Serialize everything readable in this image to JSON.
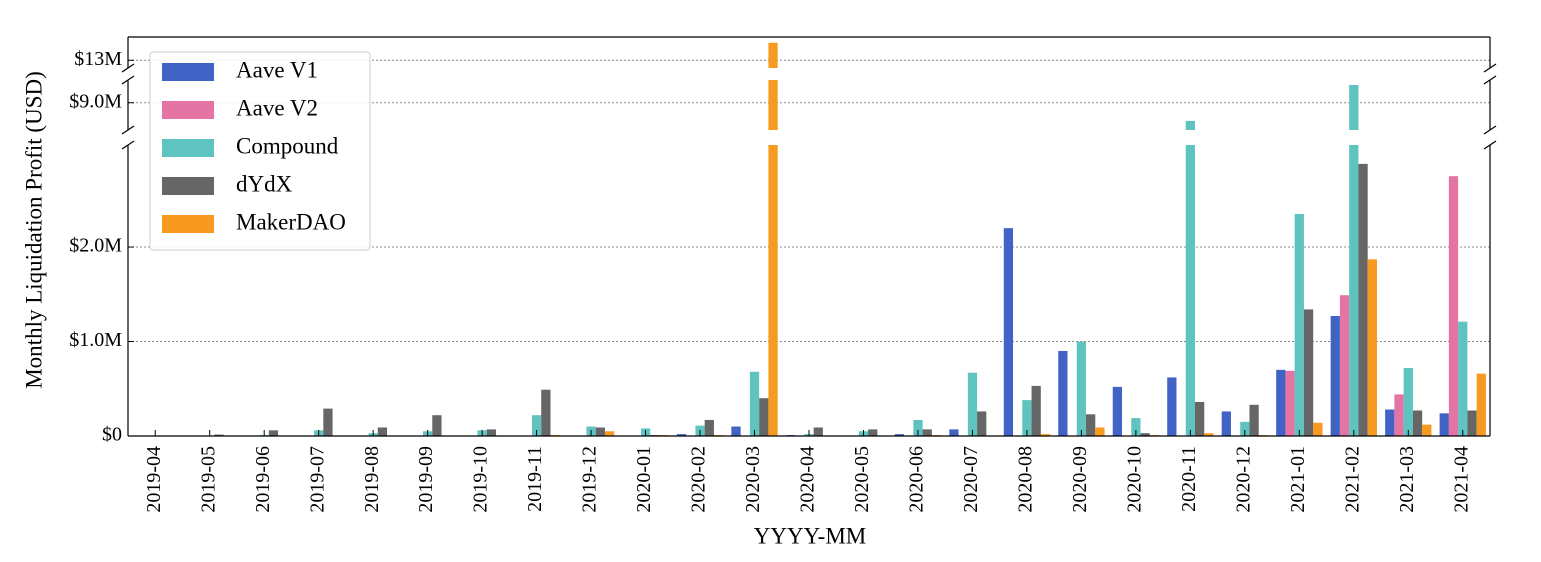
{
  "chart_data": {
    "type": "bar",
    "ylabel": "Monthly Liquidation Profit (USD)",
    "xlabel": "YYYY-MM",
    "categories": [
      "2019-04",
      "2019-05",
      "2019-06",
      "2019-07",
      "2019-08",
      "2019-09",
      "2019-10",
      "2019-11",
      "2019-12",
      "2020-01",
      "2020-02",
      "2020-03",
      "2020-04",
      "2020-05",
      "2020-06",
      "2020-07",
      "2020-08",
      "2020-09",
      "2020-10",
      "2020-11",
      "2020-12",
      "2021-01",
      "2021-02",
      "2021-03",
      "2021-04"
    ],
    "y_panels": [
      {
        "ylim": [
          0,
          3080000
        ],
        "yticks": [
          {
            "value": 0,
            "label": "$0"
          },
          {
            "value": 1000000,
            "label": "$1.0M"
          },
          {
            "value": 2000000,
            "label": "$2.0M"
          }
        ]
      },
      {
        "ylim": [
          8400000,
          9500000
        ],
        "yticks": [
          {
            "value": 9000000,
            "label": "$9.0M"
          }
        ]
      },
      {
        "ylim": [
          12800000,
          13600000
        ],
        "yticks": [
          {
            "value": 13000000,
            "label": "$13M"
          }
        ]
      }
    ],
    "grid": true,
    "legend": "upper left",
    "series": [
      {
        "name": "Aave V1",
        "color": "#4263c6",
        "values": [
          0,
          0,
          0,
          0,
          0,
          0,
          0,
          0,
          0,
          0,
          20000,
          100000,
          10000,
          0,
          20000,
          70000,
          2200000,
          900000,
          520000,
          620000,
          260000,
          700000,
          1270000,
          280000,
          240000
        ]
      },
      {
        "name": "Aave V2",
        "color": "#e474a4",
        "values": [
          null,
          null,
          null,
          null,
          null,
          null,
          null,
          null,
          null,
          null,
          null,
          null,
          null,
          null,
          null,
          null,
          null,
          null,
          null,
          null,
          null,
          690000,
          1490000,
          440000,
          2750000
        ]
      },
      {
        "name": "Compound",
        "color": "#5fc4bf",
        "values": [
          0,
          0,
          10000,
          60000,
          30000,
          50000,
          60000,
          220000,
          100000,
          80000,
          110000,
          680000,
          20000,
          50000,
          170000,
          670000,
          380000,
          1000000,
          190000,
          8600000,
          150000,
          2350000,
          9390000,
          720000,
          1210000
        ]
      },
      {
        "name": "dYdX",
        "color": "#666666",
        "values": [
          5000,
          15000,
          60000,
          290000,
          90000,
          220000,
          70000,
          490000,
          90000,
          10000,
          170000,
          400000,
          90000,
          70000,
          70000,
          260000,
          530000,
          230000,
          30000,
          360000,
          330000,
          1340000,
          2880000,
          270000,
          270000
        ]
      },
      {
        "name": "MakerDAO",
        "color": "#f89a1f",
        "values": [
          0,
          0,
          0,
          0,
          0,
          0,
          0,
          10000,
          50000,
          10000,
          10000,
          13450000,
          0,
          0,
          10000,
          0,
          20000,
          90000,
          10000,
          30000,
          10000,
          140000,
          1870000,
          120000,
          660000
        ]
      }
    ]
  }
}
